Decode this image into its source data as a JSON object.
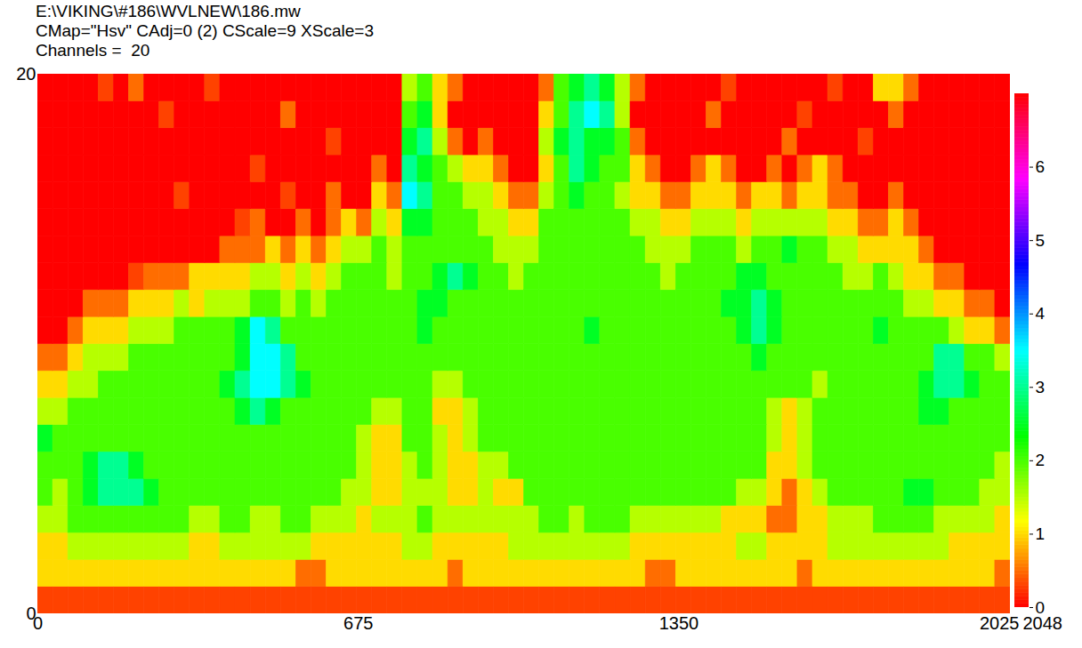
{
  "chart_data": {
    "type": "heatmap",
    "title": "E:\\VIKING\\#186\\WVLNEW\\186.mw",
    "subtitle": "CMap=\"Hsv\" CAdj=0 (2) CScale=9 XScale=3",
    "annotations": [
      "Channels =  20"
    ],
    "x": [
      0,
      32,
      64,
      96,
      128,
      160,
      192,
      224,
      256,
      288,
      320,
      352,
      384,
      416,
      448,
      480,
      512,
      544,
      576,
      608,
      640,
      672,
      704,
      736,
      768,
      800,
      832,
      864,
      896,
      928,
      960,
      992,
      1024,
      1056,
      1088,
      1120,
      1152,
      1184,
      1216,
      1248,
      1280,
      1312,
      1344,
      1376,
      1408,
      1440,
      1472,
      1504,
      1536,
      1568,
      1600,
      1632,
      1664,
      1696,
      1728,
      1760,
      1792,
      1824,
      1856,
      1888,
      1920,
      1952,
      1984,
      2016
    ],
    "y": [
      0,
      1,
      2,
      3,
      4,
      5,
      6,
      7,
      8,
      9,
      10,
      11,
      12,
      13,
      14,
      15,
      16,
      17,
      18,
      19
    ],
    "cells": [
      [
        0.3,
        0.3,
        0.3,
        0.3,
        0.3,
        0.3,
        0.3,
        0.3,
        0.3,
        0.3,
        0.3,
        0.3,
        0.3,
        0.3,
        0.3,
        0.3,
        0.3,
        0.3,
        0.3,
        0.3,
        0.3,
        0.3,
        0.3,
        0.3,
        0.3,
        0.3,
        0.3,
        0.3,
        0.3,
        0.3,
        0.3,
        0.3,
        0.3,
        0.3,
        0.3,
        0.3,
        0.3,
        0.3,
        0.3,
        0.3,
        0.3,
        0.3,
        0.3,
        0.3,
        0.3,
        0.3,
        0.3,
        0.3,
        0.3,
        0.3,
        0.3,
        0.3,
        0.3,
        0.3,
        0.3,
        0.3,
        0.3,
        0.3,
        0.3,
        0.3,
        0.3,
        0.3,
        0.3,
        0.3
      ],
      [
        1,
        1,
        1,
        1,
        1,
        1,
        1,
        1,
        1,
        1,
        1,
        1,
        1,
        1,
        1,
        1,
        1,
        0.5,
        0.5,
        1,
        1,
        1,
        1,
        1,
        1,
        1,
        1,
        0.5,
        1,
        1,
        1,
        1,
        1,
        1,
        1,
        1,
        1,
        1,
        1,
        1,
        0.5,
        0.5,
        1,
        1,
        1,
        1,
        1,
        1,
        1,
        1,
        0.5,
        1,
        1,
        1,
        1,
        1,
        1,
        1,
        1,
        1,
        1,
        1,
        1,
        0.5
      ],
      [
        1,
        1,
        1.5,
        1.5,
        1.5,
        1.5,
        1.5,
        1.5,
        1.5,
        1.5,
        1,
        1,
        1.5,
        1.5,
        1.5,
        1.5,
        1.5,
        1.5,
        1,
        1,
        1,
        1,
        1,
        1,
        1.5,
        1.5,
        1,
        1,
        1,
        1,
        1,
        1.5,
        1.5,
        1.5,
        1.5,
        1.5,
        1.5,
        1.5,
        1.5,
        1,
        1,
        1,
        1,
        1,
        1,
        1,
        1.5,
        1.5,
        1,
        1,
        1,
        1,
        1.5,
        1.5,
        1.5,
        1.5,
        1.5,
        1.5,
        1.5,
        1.5,
        1,
        1,
        1,
        1
      ],
      [
        1.5,
        1.5,
        2,
        2,
        2,
        2,
        2,
        2,
        2,
        2,
        1.5,
        1.5,
        2,
        2,
        1.5,
        1.5,
        2,
        2,
        1.5,
        1.5,
        1.5,
        1,
        1.5,
        1.5,
        1.5,
        2,
        1.5,
        1.5,
        1.5,
        1.5,
        1.5,
        1.5,
        1.5,
        2,
        2,
        1.5,
        2,
        2,
        2,
        1.5,
        1.5,
        1.5,
        1.5,
        1.5,
        1.5,
        1,
        1,
        1,
        0.5,
        0.5,
        1,
        1,
        1.5,
        1.5,
        1.5,
        2,
        2,
        2,
        2,
        1.5,
        1.5,
        1.5,
        1.5,
        1
      ],
      [
        2,
        1.5,
        2,
        2.5,
        3,
        3,
        3,
        2.5,
        2,
        2,
        2,
        2,
        2,
        2,
        2,
        2,
        2,
        2,
        2,
        2,
        1.5,
        1.5,
        1,
        1,
        1.5,
        1.5,
        1.5,
        1,
        1,
        1.5,
        1,
        1,
        2,
        2,
        2,
        2,
        2,
        2,
        2,
        2,
        2,
        2,
        2,
        2,
        2,
        2,
        1.5,
        1.5,
        1,
        0.5,
        1,
        1.5,
        2,
        2,
        2,
        2,
        2,
        2.5,
        2.5,
        2,
        2,
        2,
        1.5,
        1.5
      ],
      [
        2,
        2,
        2,
        2.5,
        3,
        3,
        2.5,
        2,
        2,
        2,
        2,
        2,
        2,
        2,
        2,
        2,
        2,
        2,
        2,
        2,
        2,
        1.5,
        1,
        1,
        1.5,
        2,
        1.5,
        1,
        1,
        1.5,
        1.5,
        2,
        2,
        2,
        2,
        2,
        2,
        2,
        2,
        2,
        2,
        2,
        2,
        2,
        2,
        2,
        2,
        2,
        1,
        1,
        1.5,
        2,
        2,
        2,
        2,
        2,
        2,
        2,
        2,
        2,
        2,
        2,
        2,
        1.5
      ],
      [
        2.5,
        2,
        2,
        2,
        2,
        2,
        2,
        2,
        2,
        2,
        2,
        2,
        2,
        2,
        2,
        2,
        2,
        2,
        2,
        2,
        2,
        1.5,
        1,
        1,
        2,
        2,
        1.5,
        1,
        1.5,
        2,
        2,
        2,
        2,
        2,
        2,
        2,
        2,
        2,
        2,
        2,
        2,
        2,
        2,
        2,
        2,
        2,
        2,
        2,
        1.5,
        1,
        1.5,
        2,
        2,
        2,
        2,
        2,
        2,
        2,
        2,
        2,
        2,
        2,
        2,
        2
      ],
      [
        1.5,
        1.5,
        2,
        2,
        2,
        2,
        2,
        2,
        2,
        2,
        2,
        2,
        2,
        2.5,
        3,
        2.5,
        2,
        2,
        2,
        2,
        2,
        2,
        1.5,
        1.5,
        2,
        2,
        1,
        1,
        1.5,
        2,
        2,
        2,
        2,
        2,
        2,
        2,
        2,
        2,
        2,
        2,
        2,
        2,
        2,
        2,
        2,
        2,
        2,
        2,
        1.5,
        1,
        1.5,
        2,
        2,
        2,
        2,
        2,
        2,
        2,
        2.5,
        2.5,
        2,
        2,
        2,
        2
      ],
      [
        1,
        1,
        1.5,
        1.5,
        2,
        2,
        2,
        2,
        2,
        2,
        2,
        2,
        2.5,
        3,
        3.5,
        3.5,
        3,
        2.5,
        2,
        2,
        2,
        2,
        2,
        2,
        2,
        2,
        1.5,
        1.5,
        2,
        2,
        2,
        2,
        2,
        2,
        2,
        2,
        2,
        2,
        2,
        2,
        2,
        2,
        2,
        2,
        2,
        2,
        2,
        2,
        2,
        2,
        2,
        1.5,
        2,
        2,
        2,
        2,
        2,
        2,
        2.5,
        3,
        3,
        2.5,
        2,
        2
      ],
      [
        0.5,
        0.5,
        1,
        1.5,
        1.5,
        1.5,
        2,
        2,
        2,
        2,
        2,
        2,
        2,
        2.5,
        3.5,
        3.5,
        3,
        2,
        2,
        2,
        2,
        2,
        2,
        2,
        2,
        2,
        2,
        2,
        2,
        2,
        2,
        2,
        2,
        2,
        2,
        2,
        2,
        2,
        2,
        2,
        2,
        2,
        2,
        2,
        2,
        2,
        2,
        2.5,
        2,
        2,
        2,
        2,
        2,
        2,
        2,
        2,
        2,
        2,
        2,
        3,
        3,
        2,
        2,
        1.5
      ],
      [
        0,
        0,
        0.5,
        1,
        1,
        1,
        1.5,
        1.5,
        1.5,
        2,
        2,
        2,
        2,
        2.5,
        3.5,
        3,
        2,
        2,
        2,
        2,
        2,
        2,
        2,
        2,
        2,
        2.5,
        2,
        2,
        2,
        2,
        2,
        2,
        2,
        2,
        2,
        2,
        2.5,
        2,
        2,
        2,
        2,
        2,
        2,
        2,
        2,
        2,
        2.5,
        3,
        2.5,
        2,
        2,
        2,
        2,
        2,
        2,
        2.5,
        2,
        2,
        2,
        2,
        1.5,
        1,
        1,
        0.5
      ],
      [
        0,
        0,
        0,
        0.5,
        0.5,
        0.5,
        1,
        1,
        1,
        1.5,
        1,
        1.5,
        1.5,
        1.5,
        2,
        2,
        1.5,
        2,
        1.5,
        2,
        2,
        2,
        2,
        2,
        2,
        2.5,
        2.5,
        2,
        2,
        2,
        2,
        2,
        2,
        2,
        2,
        2,
        2,
        2,
        2,
        2,
        2,
        2,
        2,
        2,
        2,
        2.5,
        2.5,
        3,
        2.5,
        2,
        2,
        2,
        2,
        2,
        2,
        2,
        2,
        1.5,
        1.5,
        1,
        1,
        0.5,
        0.5,
        0
      ],
      [
        0,
        0,
        0,
        0,
        0,
        0,
        0.3,
        0.5,
        0.5,
        0.5,
        1,
        1,
        1,
        1,
        1.5,
        1.5,
        1,
        1.5,
        1,
        1.5,
        2,
        2,
        2,
        1.5,
        2,
        2,
        2.5,
        3,
        2.5,
        2,
        2,
        1.5,
        2,
        2,
        2,
        2,
        2,
        2,
        2,
        2,
        2,
        1.5,
        2,
        2,
        2,
        2,
        2.5,
        2.5,
        2,
        2,
        2,
        2,
        2,
        1.5,
        1.5,
        2,
        1.5,
        1,
        1,
        0.5,
        0.5,
        0,
        0,
        0
      ],
      [
        0,
        0,
        0,
        0,
        0,
        0,
        0,
        0,
        0,
        0,
        0,
        0,
        0.5,
        0.5,
        0.5,
        1,
        0.5,
        1,
        0.5,
        1,
        1.5,
        1.5,
        2,
        1.5,
        2,
        2,
        2,
        2,
        2,
        2,
        1.5,
        1.5,
        1.5,
        2,
        2,
        2,
        2,
        2,
        2,
        2,
        1.5,
        1.5,
        1.5,
        2,
        2,
        2,
        1.5,
        2,
        2,
        2.5,
        2,
        2,
        1.5,
        1.5,
        1,
        1,
        1,
        1,
        0.5,
        0,
        0,
        0,
        0,
        0
      ],
      [
        0,
        0,
        0,
        0,
        0,
        0,
        0,
        0,
        0,
        0,
        0,
        0,
        0,
        0.3,
        0.5,
        0,
        0,
        0.5,
        0,
        0.5,
        1,
        0.5,
        1.5,
        1,
        2.5,
        2.5,
        2,
        2,
        2,
        1.5,
        1.5,
        1,
        1,
        2,
        2,
        2,
        2,
        2,
        2,
        1.5,
        1.5,
        1,
        1,
        1.5,
        1.5,
        1.5,
        1,
        1.5,
        1.5,
        1.5,
        1.5,
        1.5,
        1,
        1,
        0.5,
        0.5,
        1,
        0.5,
        0,
        0,
        0,
        0,
        0,
        0
      ],
      [
        0,
        0,
        0,
        0,
        0,
        0,
        0,
        0,
        0,
        0.3,
        0,
        0,
        0,
        0,
        0,
        0,
        0.3,
        0,
        0,
        0.5,
        0,
        0,
        1,
        0.5,
        3.5,
        3,
        2,
        2,
        1.5,
        1.5,
        1,
        0.5,
        0.5,
        1.5,
        2,
        2.5,
        2,
        2,
        1.5,
        1,
        1,
        0.5,
        0.5,
        1,
        1,
        1,
        0.5,
        1,
        1,
        0.5,
        1,
        1,
        0.5,
        0.5,
        0,
        0,
        0.5,
        0,
        0,
        0,
        0,
        0,
        0,
        0
      ],
      [
        0,
        0,
        0,
        0,
        0,
        0,
        0,
        0,
        0,
        0,
        0,
        0,
        0,
        0,
        0.3,
        0,
        0,
        0,
        0,
        0,
        0,
        0,
        0.5,
        0,
        3,
        2.5,
        2,
        1.5,
        1,
        1,
        0.5,
        0,
        0,
        1,
        2,
        3,
        2.5,
        2,
        2,
        1,
        0.5,
        0,
        0,
        0.5,
        1,
        0.5,
        0,
        0,
        0.5,
        0,
        0.5,
        1,
        0.5,
        0,
        0,
        0,
        0,
        0,
        0,
        0,
        0,
        0,
        0,
        0
      ],
      [
        0,
        0,
        0,
        0,
        0,
        0,
        0,
        0,
        0,
        0,
        0,
        0,
        0,
        0,
        0,
        0,
        0,
        0,
        0,
        0.3,
        0,
        0,
        0,
        0,
        2.5,
        3,
        1.5,
        0.5,
        0,
        0.5,
        0,
        0,
        0,
        1.5,
        2.5,
        3,
        2.5,
        2.5,
        2,
        0.5,
        0,
        0,
        0,
        0,
        0,
        0,
        0,
        0,
        0,
        0.5,
        0,
        0,
        0,
        0,
        0.3,
        0,
        0,
        0,
        0,
        0,
        0,
        0,
        0,
        0
      ],
      [
        0,
        0,
        0,
        0,
        0,
        0,
        0,
        0,
        0.3,
        0,
        0,
        0,
        0,
        0,
        0,
        0,
        0.5,
        0,
        0,
        0,
        0,
        0,
        0,
        0,
        2,
        2.5,
        1,
        0,
        0,
        0,
        0,
        0,
        0,
        1,
        2,
        3,
        3.5,
        3,
        1.5,
        0,
        0,
        0,
        0,
        0,
        0.5,
        0,
        0,
        0,
        0,
        0,
        0.3,
        0,
        0,
        0,
        0,
        0,
        0.5,
        0,
        0,
        0,
        0,
        0,
        0,
        0
      ],
      [
        0,
        0,
        0,
        0,
        0.3,
        0,
        0.5,
        0,
        0,
        0,
        0,
        0.3,
        0,
        0,
        0,
        0,
        0,
        0,
        0,
        0,
        0,
        0,
        0,
        0,
        1.5,
        2,
        1,
        0.5,
        0,
        0,
        0,
        0,
        0,
        0.5,
        2,
        2.5,
        3,
        2.5,
        1.5,
        0.5,
        0,
        0,
        0,
        0,
        0,
        0.3,
        0,
        0,
        0,
        0,
        0,
        0,
        0.3,
        0,
        0,
        1,
        1,
        0.5,
        0,
        0,
        0,
        0,
        0,
        0
      ]
    ],
    "xlim": [
      0,
      2048
    ],
    "xticks": [
      0,
      675,
      1350,
      2025,
      2048
    ],
    "ylim": [
      0,
      20
    ],
    "yticks": [
      0,
      20
    ],
    "color_range": [
      0,
      7
    ],
    "color_ticks": [
      0,
      1,
      2,
      3,
      4,
      5,
      6
    ]
  }
}
